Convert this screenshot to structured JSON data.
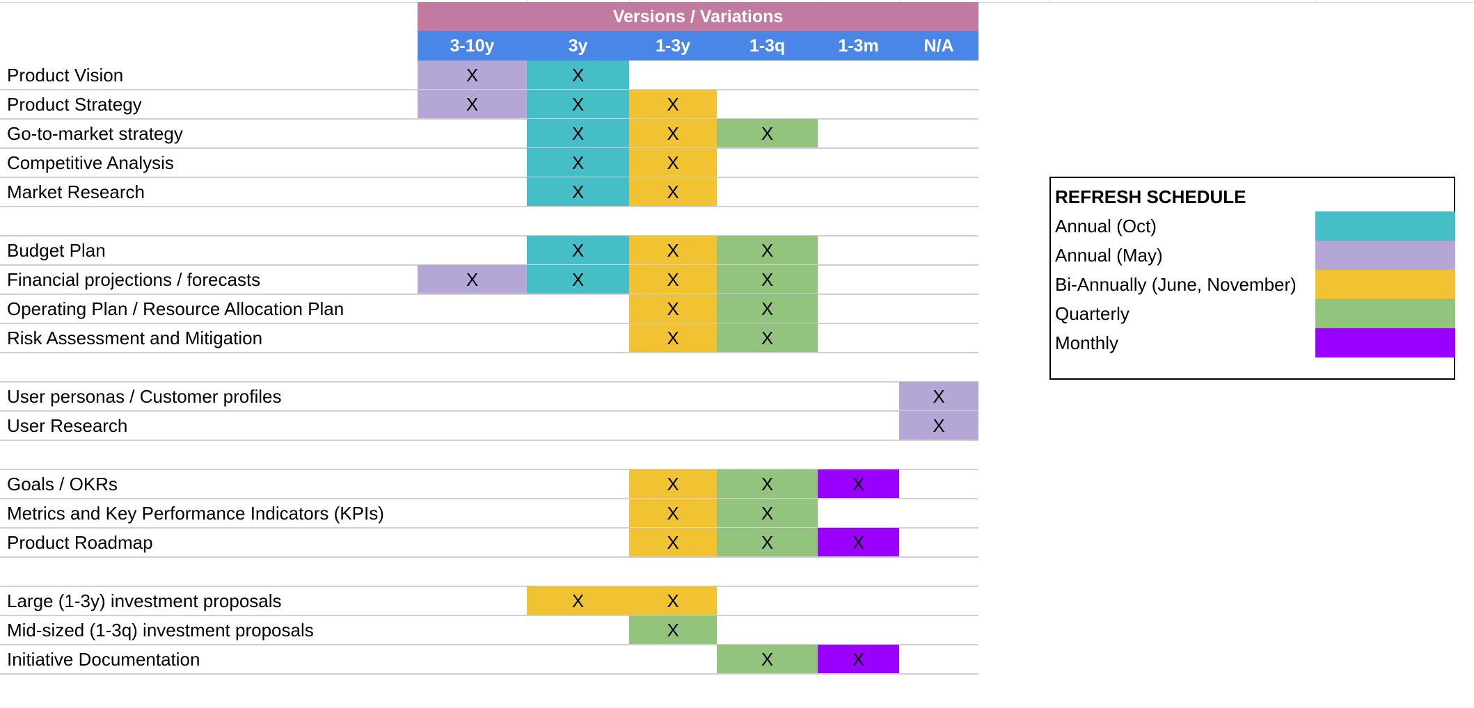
{
  "header": {
    "banner": "Versions / Variations",
    "columns": [
      "3-10y",
      "3y",
      "1-3y",
      "1-3q",
      "1-3m",
      "N/A"
    ]
  },
  "colors": {
    "header_banner": "#c27ba0",
    "header_columns": "#4a86e8",
    "annual_oct": "#45bec6",
    "annual_may": "#b4a7d6",
    "bi_annually": "#f1c232",
    "quarterly": "#93c47d",
    "monthly": "#9900ff"
  },
  "rows": [
    {
      "label": "Product Vision",
      "cells": [
        {
          "col": 0,
          "color": "annual_may",
          "mark": "X"
        },
        {
          "col": 1,
          "color": "annual_oct",
          "mark": "X"
        }
      ]
    },
    {
      "label": "Product Strategy",
      "cells": [
        {
          "col": 0,
          "color": "annual_may",
          "mark": "X"
        },
        {
          "col": 1,
          "color": "annual_oct",
          "mark": "X"
        },
        {
          "col": 2,
          "color": "bi_annually",
          "mark": "X"
        }
      ]
    },
    {
      "label": "Go-to-market strategy",
      "cells": [
        {
          "col": 1,
          "color": "annual_oct",
          "mark": "X"
        },
        {
          "col": 2,
          "color": "bi_annually",
          "mark": "X"
        },
        {
          "col": 3,
          "color": "quarterly",
          "mark": "X"
        }
      ]
    },
    {
      "label": "Competitive Analysis",
      "cells": [
        {
          "col": 1,
          "color": "annual_oct",
          "mark": "X"
        },
        {
          "col": 2,
          "color": "bi_annually",
          "mark": "X"
        }
      ]
    },
    {
      "label": "Market Research",
      "cells": [
        {
          "col": 1,
          "color": "annual_oct",
          "mark": "X"
        },
        {
          "col": 2,
          "color": "bi_annually",
          "mark": "X"
        }
      ]
    },
    {
      "label": "",
      "cells": []
    },
    {
      "label": "Budget Plan",
      "cells": [
        {
          "col": 1,
          "color": "annual_oct",
          "mark": "X"
        },
        {
          "col": 2,
          "color": "bi_annually",
          "mark": "X"
        },
        {
          "col": 3,
          "color": "quarterly",
          "mark": "X"
        }
      ]
    },
    {
      "label": "Financial projections / forecasts",
      "cells": [
        {
          "col": 0,
          "color": "annual_may",
          "mark": "X"
        },
        {
          "col": 1,
          "color": "annual_oct",
          "mark": "X"
        },
        {
          "col": 2,
          "color": "bi_annually",
          "mark": "X"
        },
        {
          "col": 3,
          "color": "quarterly",
          "mark": "X"
        }
      ]
    },
    {
      "label": "Operating Plan / Resource Allocation Plan",
      "cells": [
        {
          "col": 2,
          "color": "bi_annually",
          "mark": "X"
        },
        {
          "col": 3,
          "color": "quarterly",
          "mark": "X"
        }
      ]
    },
    {
      "label": "Risk Assessment and Mitigation",
      "cells": [
        {
          "col": 2,
          "color": "bi_annually",
          "mark": "X"
        },
        {
          "col": 3,
          "color": "quarterly",
          "mark": "X"
        }
      ]
    },
    {
      "label": "",
      "cells": []
    },
    {
      "label": "User personas / Customer profiles",
      "cells": [
        {
          "col": 5,
          "color": "annual_may",
          "mark": "X"
        }
      ]
    },
    {
      "label": "User Research",
      "cells": [
        {
          "col": 5,
          "color": "annual_may",
          "mark": "X"
        }
      ]
    },
    {
      "label": "",
      "cells": []
    },
    {
      "label": "Goals / OKRs",
      "cells": [
        {
          "col": 2,
          "color": "bi_annually",
          "mark": "X"
        },
        {
          "col": 3,
          "color": "quarterly",
          "mark": "X"
        },
        {
          "col": 4,
          "color": "monthly",
          "mark": "X"
        }
      ]
    },
    {
      "label": "Metrics and Key Performance Indicators (KPIs)",
      "cells": [
        {
          "col": 2,
          "color": "bi_annually",
          "mark": "X"
        },
        {
          "col": 3,
          "color": "quarterly",
          "mark": "X"
        }
      ]
    },
    {
      "label": "Product Roadmap",
      "cells": [
        {
          "col": 2,
          "color": "bi_annually",
          "mark": "X"
        },
        {
          "col": 3,
          "color": "quarterly",
          "mark": "X"
        },
        {
          "col": 4,
          "color": "monthly",
          "mark": "X"
        }
      ]
    },
    {
      "label": "",
      "cells": []
    },
    {
      "label": "Large (1-3y) investment proposals",
      "cells": [
        {
          "col": 1,
          "color": "bi_annually",
          "mark": "X"
        },
        {
          "col": 2,
          "color": "bi_annually",
          "mark": "X"
        }
      ]
    },
    {
      "label": "Mid-sized (1-3q) investment proposals",
      "cells": [
        {
          "col": 2,
          "color": "quarterly",
          "mark": "X"
        }
      ]
    },
    {
      "label": "Initiative Documentation",
      "cells": [
        {
          "col": 3,
          "color": "quarterly",
          "mark": "X"
        },
        {
          "col": 4,
          "color": "monthly",
          "mark": "X"
        }
      ]
    }
  ],
  "legend": {
    "title": "REFRESH SCHEDULE",
    "items": [
      {
        "label": "Annual (Oct)",
        "color": "annual_oct"
      },
      {
        "label": "Annual (May)",
        "color": "annual_may"
      },
      {
        "label": "Bi-Annually (June, November)",
        "color": "bi_annually"
      },
      {
        "label": "Quarterly",
        "color": "quarterly"
      },
      {
        "label": "Monthly",
        "color": "monthly"
      }
    ]
  }
}
